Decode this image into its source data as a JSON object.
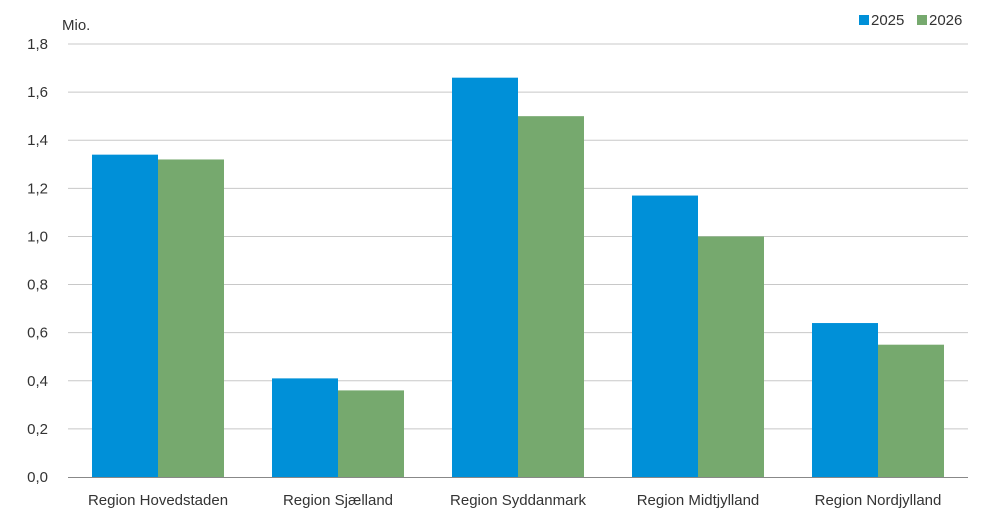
{
  "chart_data": {
    "type": "bar",
    "title": "",
    "xlabel": "",
    "ylabel": "Mio.",
    "categories": [
      "Region Hovedstaden",
      "Region Sjælland",
      "Region Syddanmark",
      "Region Midtjylland",
      "Region Nordjylland"
    ],
    "series": [
      {
        "name": "2025",
        "color": "#0090d8",
        "values": [
          1.34,
          0.41,
          1.66,
          1.17,
          0.64
        ]
      },
      {
        "name": "2026",
        "color": "#76a96e",
        "values": [
          1.32,
          0.36,
          1.5,
          1.0,
          0.55
        ]
      }
    ],
    "ylim": [
      0,
      1.8
    ],
    "yticks": [
      "0,0",
      "0,2",
      "0,4",
      "0,6",
      "0,8",
      "1,0",
      "1,2",
      "1,4",
      "1,6",
      "1,8"
    ],
    "grid": true,
    "legend": "top-right"
  }
}
